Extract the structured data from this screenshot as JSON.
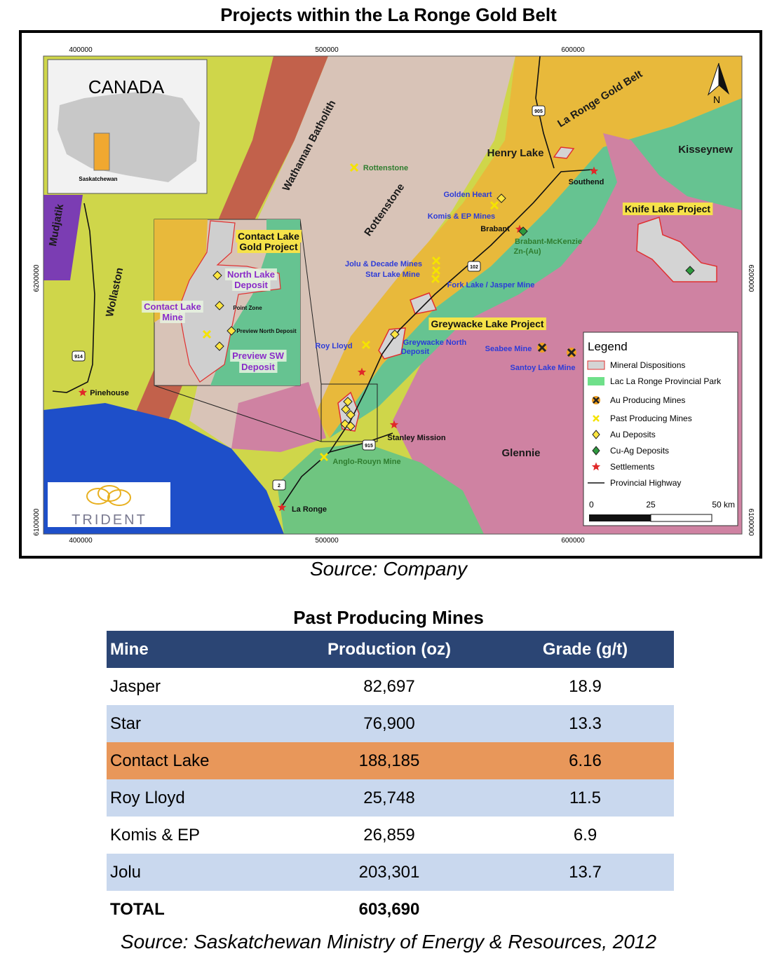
{
  "header": {
    "title": "Projects within the La Ronge Gold Belt"
  },
  "map": {
    "coords_x": [
      400000,
      500000,
      600000
    ],
    "coords_y": [
      6200000,
      6100000
    ],
    "labels": [
      "Wathaman Batholith",
      "Rottenstone",
      "La Ronge Gold Belt",
      "Henry Lake",
      "Kisseynew",
      "Wollaston",
      "Mudjatik",
      "Glennie",
      "Rottenstone",
      "Golden Heart",
      "Komis & EP Mines",
      "Brabant",
      "Brabant-McKenzie",
      "Zn-(Au)",
      "Southend",
      "Knife Lake Project",
      "Jolu & Decade Mines",
      "Star Lake Mine",
      "Fork Lake / Jasper Mine",
      "Greywacke Lake Project",
      "Greywacke North",
      "Deposit",
      "Roy Lloyd",
      "Seabee Mine",
      "Santoy Lake Mine",
      "Pinehouse",
      "Stanley Mission",
      "Anglo-Rouyn Mine",
      "La Ronge"
    ],
    "inset_labels": [
      "Contact Lake",
      "Gold Project",
      "North Lake",
      "Deposit",
      "Point Zone",
      "Contact Lake",
      "Mine",
      "Preview North Deposit",
      "Preview SW",
      "Deposit"
    ],
    "canada_inset": {
      "title": "CANADA",
      "province": "Saskatchewan"
    },
    "highways": [
      "905",
      "102",
      "914",
      "2",
      "915"
    ],
    "north": "N",
    "legend": {
      "title": "Legend",
      "items": [
        "Mineral Dispositions",
        "Lac La Ronge Provincial  Park",
        "Au Producing Mines",
        "Past Producing Mines",
        "Au Deposits",
        "Cu-Ag Deposits",
        "Settlements",
        "Provincial Highway"
      ]
    },
    "scale": [
      "0",
      "25",
      "50 km"
    ],
    "logo": "TRIDENT"
  },
  "map_source": "Source: Company",
  "table": {
    "title": "Past Producing Mines",
    "columns": [
      "Mine",
      "Production (oz)",
      "Grade (g/t)"
    ],
    "rows": [
      [
        "Jasper",
        "82,697",
        "18.9"
      ],
      [
        "Star",
        "76,900",
        "13.3"
      ],
      [
        "Contact Lake",
        "188,185",
        "6.16"
      ],
      [
        "Roy Lloyd",
        "25,748",
        "11.5"
      ],
      [
        "Komis & EP",
        "26,859",
        "6.9"
      ],
      [
        "Jolu",
        "203,301",
        "13.7"
      ]
    ],
    "total": [
      "TOTAL",
      "603,690"
    ],
    "source": "Source: Saskatchewan Ministry of Energy & Resources, 2012"
  }
}
